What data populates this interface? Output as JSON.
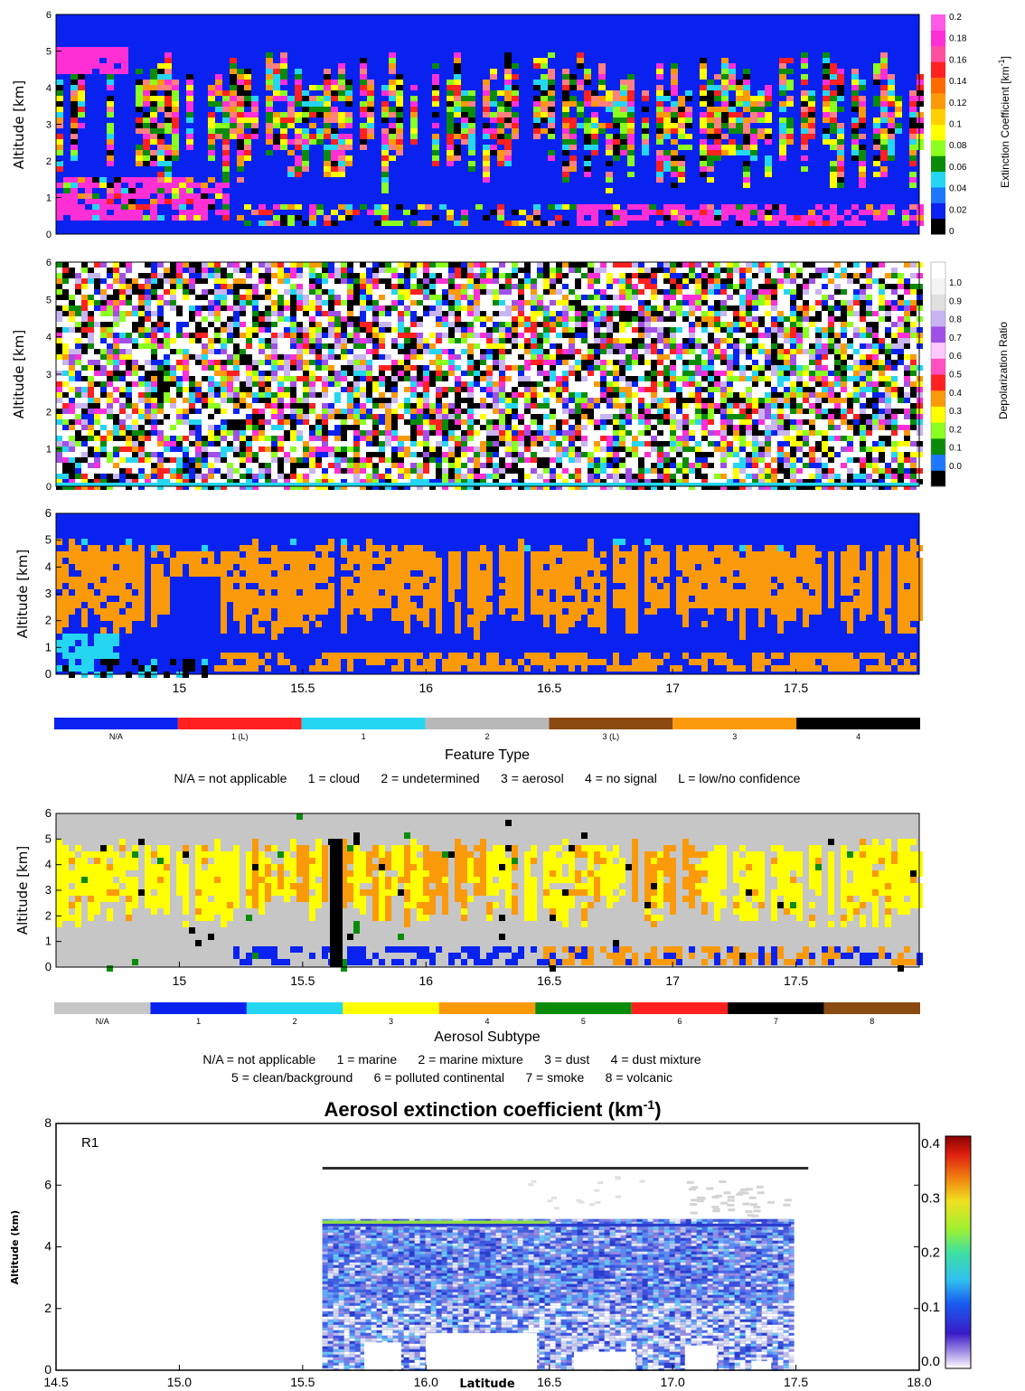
{
  "colors": {
    "blue": "#0a22f0",
    "pink": "#ff2fd6",
    "cyan": "#25d6f2",
    "yellow": "#ffff00",
    "orange": "#fa9a0a",
    "green": "#0a8c0a",
    "red": "#ff2020",
    "black": "#000000",
    "white": "#ffffff",
    "gray": "#c6c6c6",
    "brown": "#8a4a10",
    "lime": "#8aff20",
    "purple": "#a050e6",
    "lavender": "#c8b4f0"
  },
  "chart_data": [
    {
      "type": "heatmap",
      "ylabel": "Altitude [km]",
      "yticks": [
        "0",
        "1",
        "2",
        "3",
        "4",
        "5",
        "6"
      ],
      "ylim": [
        0,
        6
      ],
      "colorbar": {
        "label": "Extinction Coefficient [km",
        "label_sup": "-1",
        "label_end": "]",
        "ticks": [
          "0.2",
          "0.18",
          "0.16",
          "0.14",
          "0.12",
          "0.1",
          "0.08",
          "0.06",
          "0.04",
          "0.02",
          "0"
        ]
      }
    },
    {
      "type": "heatmap",
      "ylabel": "Altitude [km]",
      "yticks": [
        "0",
        "1",
        "2",
        "3",
        "4",
        "5",
        "6"
      ],
      "ylim": [
        0,
        6
      ],
      "colorbar": {
        "label": "Depolarization Ratio",
        "ticks": [
          "1.0",
          "0.9",
          "0.8",
          "0.7",
          "0.6",
          "0.5",
          "0.4",
          "0.3",
          "0.2",
          "0.1",
          "0.0"
        ]
      }
    },
    {
      "type": "heatmap",
      "ylabel": "Altitude [km]",
      "yticks": [
        "0",
        "1",
        "2",
        "3",
        "4",
        "5",
        "6"
      ],
      "ylim": [
        0,
        6
      ],
      "xticks": [
        "15",
        "15.5",
        "16",
        "16.5",
        "17",
        "17.5"
      ],
      "xlim": [
        14.5,
        18.0
      ],
      "legend": {
        "title": "Feature Type",
        "items": [
          "N/A",
          "1 (L)",
          "1",
          "2",
          "3 (L)",
          "3",
          "4"
        ],
        "note": [
          "N/A = not applicable      1 = cloud      2 = undetermined      3 = aerosol      4 = no signal      L = low/no confidence"
        ]
      }
    },
    {
      "type": "heatmap",
      "ylabel": "Altitude [km]",
      "yticks": [
        "0",
        "1",
        "2",
        "3",
        "4",
        "5",
        "6"
      ],
      "ylim": [
        0,
        6
      ],
      "xticks": [
        "15",
        "15.5",
        "16",
        "16.5",
        "17",
        "17.5"
      ],
      "xlim": [
        14.5,
        18.0
      ],
      "legend": {
        "title": "Aerosol Subtype",
        "items": [
          "N/A",
          "1",
          "2",
          "3",
          "4",
          "5",
          "6",
          "7",
          "8"
        ],
        "note": [
          "N/A = not applicable      1 = marine      2 = marine mixture      3 = dust      4 = dust mixture",
          "5 = clean/background      6 = polluted continental      7 = smoke      8 = volcanic"
        ]
      }
    },
    {
      "type": "heatmap",
      "title": "Aerosol extinction coefficient (km",
      "title_sup": "-1",
      "title_end": ")",
      "annotation": "R1",
      "ylabel": "Altitude (km)",
      "xlabel": "Latitude",
      "yticks": [
        "0",
        "2",
        "4",
        "6",
        "8"
      ],
      "ylim": [
        0,
        8
      ],
      "xticks": [
        "14.5",
        "15.0",
        "15.5",
        "16.0",
        "16.5",
        "17.0",
        "17.5",
        "18.0"
      ],
      "xlim": [
        14.5,
        18.0
      ],
      "colorbar": {
        "ticks": [
          "0.4",
          "0.3",
          "0.2",
          "0.1",
          "0.0"
        ],
        "range": [
          0,
          0.4
        ]
      }
    }
  ]
}
